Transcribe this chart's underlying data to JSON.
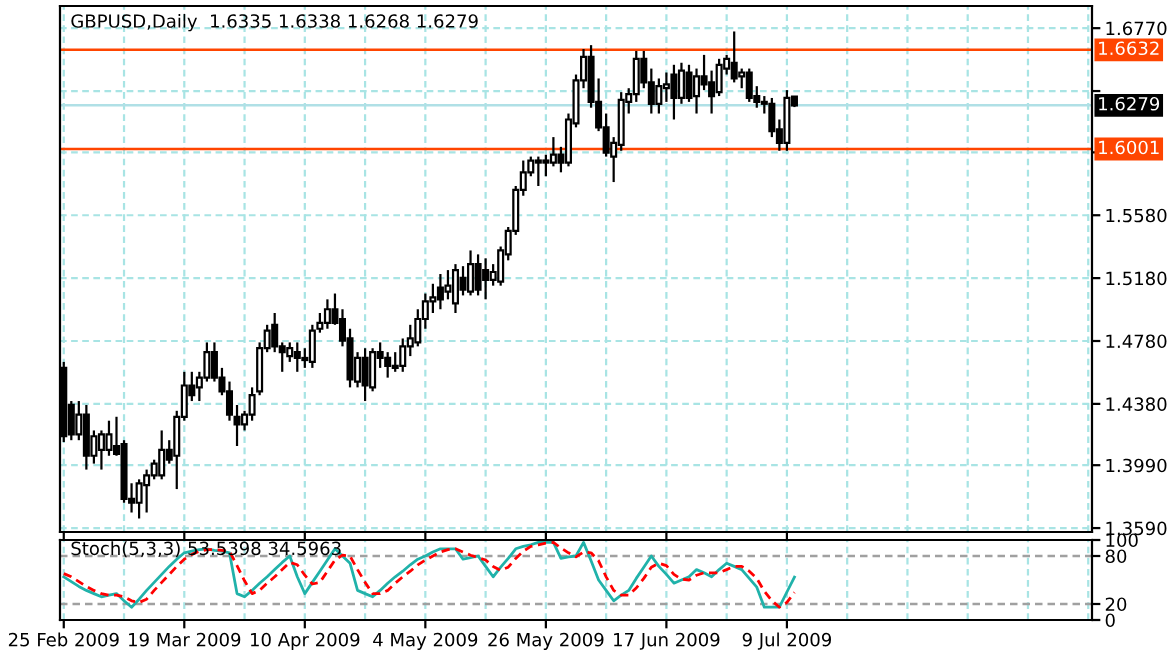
{
  "chart_data": [
    {
      "type": "candlestick",
      "title": "GBPUSD,Daily  1.6335 1.6338 1.6268 1.6279",
      "categories": [
        null,
        null,
        null,
        null,
        null,
        null,
        null,
        null,
        null,
        null,
        null,
        null,
        null,
        null,
        null,
        null,
        null,
        null,
        null,
        null,
        null,
        null,
        null,
        null,
        null,
        null,
        null,
        null,
        null,
        null,
        null,
        null,
        null,
        null,
        null,
        null,
        null,
        null,
        null,
        null,
        null,
        null,
        null,
        null,
        null,
        null,
        null,
        null,
        null,
        null,
        null,
        null,
        null,
        null,
        null,
        null,
        null,
        null,
        null,
        null,
        null,
        null,
        null,
        null,
        null,
        null,
        null,
        null,
        null,
        null,
        null,
        null,
        null,
        null,
        null,
        null,
        null,
        null,
        null,
        null,
        null,
        null,
        null,
        null,
        null,
        null,
        null,
        null,
        null,
        null,
        null,
        null,
        null,
        null,
        null,
        null,
        null,
        null,
        null,
        null,
        null,
        null,
        null,
        null,
        null,
        null,
        null,
        null,
        null,
        null,
        null,
        null,
        null,
        null,
        null,
        null,
        null,
        null,
        null,
        null,
        null,
        null,
        null,
        null,
        null,
        null,
        null,
        null,
        null,
        null,
        null,
        null,
        null,
        null,
        null,
        null,
        null
      ],
      "ohlc": [
        [
          1.4609,
          1.4647,
          1.4137,
          1.4174
        ],
        [
          1.4373,
          1.4398,
          1.4149,
          1.4186
        ],
        [
          1.4186,
          1.4398,
          1.4149,
          1.4311
        ],
        [
          1.4311,
          1.4373,
          1.3962,
          1.405
        ],
        [
          1.405,
          1.4211,
          1.4,
          1.4174
        ],
        [
          1.4087,
          1.4211,
          1.3962,
          1.4186
        ],
        [
          1.4087,
          1.4273,
          1.405,
          1.4186
        ],
        [
          1.4112,
          1.4298,
          1.405,
          1.4062
        ],
        [
          1.4124,
          1.4149,
          1.3751,
          1.3776
        ],
        [
          1.3776,
          1.3875,
          1.3689,
          1.3751
        ],
        [
          1.3751,
          1.39,
          1.3651,
          1.3875
        ],
        [
          1.3863,
          1.3962,
          1.3689,
          1.3925
        ],
        [
          1.3925,
          1.4025,
          1.39,
          1.4
        ],
        [
          1.3925,
          1.4211,
          1.39,
          1.4087
        ],
        [
          1.4087,
          1.4149,
          1.4,
          1.4025
        ],
        [
          1.405,
          1.4336,
          1.3838,
          1.4298
        ],
        [
          1.4298,
          1.4584,
          1.4273,
          1.4497
        ],
        [
          1.4497,
          1.4584,
          1.4398,
          1.4435
        ],
        [
          1.4485,
          1.4584,
          1.4398,
          1.4547
        ],
        [
          1.4547,
          1.4771,
          1.4522,
          1.4709
        ],
        [
          1.4709,
          1.4771,
          1.4522,
          1.4547
        ],
        [
          1.4547,
          1.4609,
          1.4435,
          1.446
        ],
        [
          1.446,
          1.4522,
          1.4273,
          1.4311
        ],
        [
          1.4298,
          1.4373,
          1.4112,
          1.4249
        ],
        [
          1.4249,
          1.4336,
          1.4211,
          1.4311
        ],
        [
          1.4311,
          1.4485,
          1.4273,
          1.4435
        ],
        [
          1.446,
          1.4771,
          1.4435,
          1.4734
        ],
        [
          1.4734,
          1.4883,
          1.4709,
          1.4846
        ],
        [
          1.4883,
          1.4958,
          1.4709,
          1.4746
        ],
        [
          1.4746,
          1.4771,
          1.4584,
          1.4709
        ],
        [
          1.4684,
          1.4771,
          1.4647,
          1.4734
        ],
        [
          1.4709,
          1.4771,
          1.4584,
          1.4672
        ],
        [
          1.4672,
          1.4734,
          1.4609,
          1.4659
        ],
        [
          1.4647,
          1.4883,
          1.4609,
          1.4846
        ],
        [
          1.4858,
          1.4958,
          1.4833,
          1.4895
        ],
        [
          1.4895,
          1.5045,
          1.4858,
          1.4982
        ],
        [
          1.4982,
          1.5082,
          1.4883,
          1.4895
        ],
        [
          1.492,
          1.4982,
          1.4746,
          1.4783
        ],
        [
          1.4796,
          1.4858,
          1.4485,
          1.4535
        ],
        [
          1.4522,
          1.4709,
          1.4485,
          1.4672
        ],
        [
          1.4672,
          1.4734,
          1.4398,
          1.4497
        ],
        [
          1.4485,
          1.4734,
          1.446,
          1.4709
        ],
        [
          1.4709,
          1.4771,
          1.4609,
          1.4672
        ],
        [
          1.4672,
          1.4709,
          1.4547,
          1.4622
        ],
        [
          1.4622,
          1.4709,
          1.4584,
          1.4609
        ],
        [
          1.4622,
          1.4796,
          1.4584,
          1.4746
        ],
        [
          1.4746,
          1.4883,
          1.4684,
          1.4796
        ],
        [
          1.4771,
          1.4982,
          1.4746,
          1.492
        ],
        [
          1.492,
          1.5082,
          1.4858,
          1.5032
        ],
        [
          1.5032,
          1.5144,
          1.4958,
          1.5057
        ],
        [
          1.5119,
          1.5206,
          1.4982,
          1.5045
        ],
        [
          1.5094,
          1.5231,
          1.5045,
          1.5132
        ],
        [
          1.502,
          1.5269,
          1.4958,
          1.5231
        ],
        [
          1.5182,
          1.5256,
          1.507,
          1.5107
        ],
        [
          1.5094,
          1.5356,
          1.507,
          1.5269
        ],
        [
          1.5269,
          1.5331,
          1.507,
          1.5107
        ],
        [
          1.5231,
          1.5306,
          1.5045,
          1.5169
        ],
        [
          1.5169,
          1.5269,
          1.5132,
          1.5219
        ],
        [
          1.5157,
          1.5381,
          1.5132,
          1.5356
        ],
        [
          1.5331,
          1.5505,
          1.5293,
          1.548
        ],
        [
          1.548,
          1.5766,
          1.5455,
          1.5741
        ],
        [
          1.5741,
          1.5928,
          1.5704,
          1.5853
        ],
        [
          1.5853,
          1.5953,
          1.5828,
          1.5928
        ],
        [
          1.5928,
          1.5953,
          1.5766,
          1.5915
        ],
        [
          1.5915,
          1.5965,
          1.5828,
          1.5928
        ],
        [
          1.5915,
          1.6077,
          1.5891,
          1.5965
        ],
        [
          1.5965,
          1.6015,
          1.5853,
          1.5915
        ],
        [
          1.5915,
          1.6227,
          1.5891,
          1.6189
        ],
        [
          1.6164,
          1.6475,
          1.6139,
          1.6438
        ],
        [
          1.6438,
          1.6637,
          1.6388,
          1.6587
        ],
        [
          1.6587,
          1.6662,
          1.6264,
          1.6301
        ],
        [
          1.6301,
          1.645,
          1.6115,
          1.6139
        ],
        [
          1.6139,
          1.6227,
          1.5953,
          1.5978
        ],
        [
          1.5953,
          1.6077,
          1.5791,
          1.604
        ],
        [
          1.6028,
          1.6363,
          1.599,
          1.6314
        ],
        [
          1.6301,
          1.6388,
          1.6227,
          1.6351
        ],
        [
          1.6351,
          1.6625,
          1.6301,
          1.6575
        ],
        [
          1.6575,
          1.6625,
          1.6388,
          1.6425
        ],
        [
          1.6425,
          1.6513,
          1.6227,
          1.6289
        ],
        [
          1.6289,
          1.645,
          1.6227,
          1.6401
        ],
        [
          1.6388,
          1.6488,
          1.6301,
          1.6413
        ],
        [
          1.6475,
          1.6537,
          1.6189,
          1.6326
        ],
        [
          1.6326,
          1.655,
          1.6289,
          1.65
        ],
        [
          1.6488,
          1.6537,
          1.6301,
          1.6326
        ],
        [
          1.6338,
          1.6513,
          1.6227,
          1.6463
        ],
        [
          1.6463,
          1.66,
          1.6376,
          1.6413
        ],
        [
          1.6425,
          1.65,
          1.6227,
          1.6338
        ],
        [
          1.6363,
          1.6575,
          1.6338,
          1.6537
        ],
        [
          1.6513,
          1.66,
          1.6475,
          1.6575
        ],
        [
          1.655,
          1.6749,
          1.6425,
          1.645
        ],
        [
          1.6463,
          1.6513,
          1.6388,
          1.6488
        ],
        [
          1.6488,
          1.6513,
          1.6301,
          1.6326
        ],
        [
          1.6338,
          1.6401,
          1.6264,
          1.6301
        ],
        [
          1.6301,
          1.6338,
          1.6227,
          1.6289
        ],
        [
          1.6289,
          1.6326,
          1.6077,
          1.6115
        ],
        [
          1.6127,
          1.6189,
          1.599,
          1.604
        ],
        [
          1.604,
          1.6376,
          1.599,
          1.6326
        ],
        [
          1.6335,
          1.6338,
          1.6268,
          1.6279
        ],
        null,
        null,
        null,
        null,
        null,
        null,
        null,
        null,
        null,
        null,
        null,
        null,
        null,
        null,
        null,
        null,
        null,
        null,
        null,
        null,
        null,
        null,
        null,
        null,
        null,
        null,
        null,
        null,
        null,
        null,
        null,
        null,
        null,
        null,
        null,
        null,
        null,
        null,
        null
      ],
      "ylim": [
        1.3565,
        1.6911
      ],
      "yticks": [
        {
          "value": 1.677,
          "label": "1.6770"
        },
        {
          "value": 1.637,
          "label": null
        },
        {
          "value": 1.598,
          "label": null
        },
        {
          "value": 1.558,
          "label": "1.5580"
        },
        {
          "value": 1.518,
          "label": "1.5180"
        },
        {
          "value": 1.478,
          "label": "1.4780"
        },
        {
          "value": 1.438,
          "label": "1.4380"
        },
        {
          "value": 1.399,
          "label": "1.3990"
        },
        {
          "value": 1.359,
          "label": "1.3590"
        }
      ],
      "ref_lines": [
        {
          "axis": "y",
          "value": 1.6632,
          "label": "1.6632",
          "color": "#ff4500"
        },
        {
          "axis": "y",
          "value": 1.6001,
          "label": "1.6001",
          "color": "#ff4500"
        },
        {
          "axis": "y",
          "value": 1.6279,
          "label": "1.6279",
          "color": "#b0e0e6"
        }
      ],
      "grid": true,
      "tick_labels": "y"
    },
    {
      "type": "line",
      "title": "Stoch(5,3,3) 53.5398 34.5963",
      "categories": [
        "25 Feb 2009",
        null,
        null,
        null,
        null,
        null,
        null,
        null,
        null,
        null,
        null,
        null,
        null,
        null,
        null,
        null,
        "19 Mar 2009",
        null,
        null,
        null,
        null,
        null,
        null,
        null,
        null,
        null,
        null,
        null,
        null,
        null,
        null,
        null,
        "10 Apr 2009",
        null,
        null,
        null,
        null,
        null,
        null,
        null,
        null,
        null,
        null,
        null,
        null,
        null,
        null,
        null,
        "4 May 2009",
        null,
        null,
        null,
        null,
        null,
        null,
        null,
        null,
        null,
        null,
        null,
        null,
        null,
        null,
        null,
        "26 May 2009",
        null,
        null,
        null,
        null,
        null,
        null,
        null,
        null,
        null,
        null,
        null,
        null,
        null,
        null,
        null,
        "17 Jun 2009",
        null,
        null,
        null,
        null,
        null,
        null,
        null,
        null,
        null,
        null,
        null,
        null,
        null,
        null,
        null,
        "9 Jul 2009",
        null,
        null,
        null,
        null,
        null,
        null,
        null,
        null,
        null,
        null,
        null,
        null,
        null,
        null,
        null,
        null,
        null,
        null,
        null,
        null,
        null,
        null,
        null,
        null,
        null,
        null,
        null,
        null,
        null,
        null,
        null,
        null,
        null,
        null,
        null,
        null,
        null,
        null,
        null,
        null
      ],
      "series": [
        {
          "color": "#20b2aa",
          "line_style": "solid",
          "values": [
            54,
            48,
            42,
            37,
            33,
            29,
            31,
            33,
            24,
            16,
            26,
            37,
            47,
            57,
            67,
            76,
            84,
            86,
            88,
            89,
            87,
            86,
            84,
            33,
            29,
            37,
            46,
            54,
            63,
            72,
            80,
            54,
            33,
            47,
            61,
            75,
            89,
            80,
            71,
            37,
            33,
            29,
            37,
            46,
            54,
            61,
            69,
            76,
            80,
            85,
            89,
            89,
            89,
            76,
            78,
            80,
            67,
            54,
            66,
            77,
            89,
            92,
            94,
            97,
            97,
            97,
            77,
            79,
            80,
            97,
            74,
            50,
            37,
            24,
            31,
            37,
            52,
            66,
            80,
            67,
            57,
            46,
            50,
            54,
            63,
            59,
            54,
            63,
            71,
            67,
            63,
            52,
            41,
            16,
            16,
            16,
            35,
            53.5398,
            null,
            null,
            null,
            null,
            null,
            null,
            null,
            null,
            null,
            null,
            null,
            null,
            null,
            null,
            null,
            null,
            null,
            null,
            null,
            null,
            null,
            null,
            null,
            null,
            null,
            null,
            null,
            null,
            null,
            null,
            null,
            null,
            null,
            null,
            null,
            null,
            null,
            null,
            null
          ]
        },
        {
          "color": "#ff0000",
          "line_style": "dashed",
          "values": [
            58,
            54,
            48,
            42,
            37,
            33,
            31,
            31,
            29,
            24,
            22,
            26,
            37,
            47,
            57,
            67,
            76,
            82,
            86,
            88,
            88,
            87,
            86,
            68,
            49,
            33,
            37,
            46,
            54,
            63,
            72,
            69,
            56,
            45,
            47,
            61,
            75,
            81,
            80,
            63,
            47,
            33,
            33,
            37,
            46,
            54,
            61,
            69,
            75,
            80,
            85,
            88,
            89,
            85,
            81,
            78,
            75,
            67,
            62,
            66,
            77,
            86,
            92,
            94,
            96,
            97,
            90,
            84,
            79,
            85,
            84,
            74,
            54,
            37,
            31,
            31,
            40,
            52,
            66,
            71,
            68,
            57,
            51,
            50,
            56,
            59,
            59,
            59,
            63,
            67,
            67,
            61,
            52,
            36,
            24,
            16,
            22,
            34.5963,
            null,
            null,
            null,
            null,
            null,
            null,
            null,
            null,
            null,
            null,
            null,
            null,
            null,
            null,
            null,
            null,
            null,
            null,
            null,
            null,
            null,
            null,
            null,
            null,
            null,
            null,
            null,
            null,
            null,
            null,
            null,
            null,
            null,
            null,
            null,
            null,
            null,
            null,
            null
          ]
        }
      ],
      "ylim": [
        0,
        100
      ],
      "yticks": [
        0,
        20,
        80,
        100
      ],
      "ref_lines": [
        {
          "axis": "y",
          "value": 80,
          "color": "#a0a0a0",
          "line_style": "dashed"
        },
        {
          "axis": "y",
          "value": 20,
          "color": "#a0a0a0",
          "line_style": "dashed"
        }
      ],
      "grid": "x"
    }
  ]
}
